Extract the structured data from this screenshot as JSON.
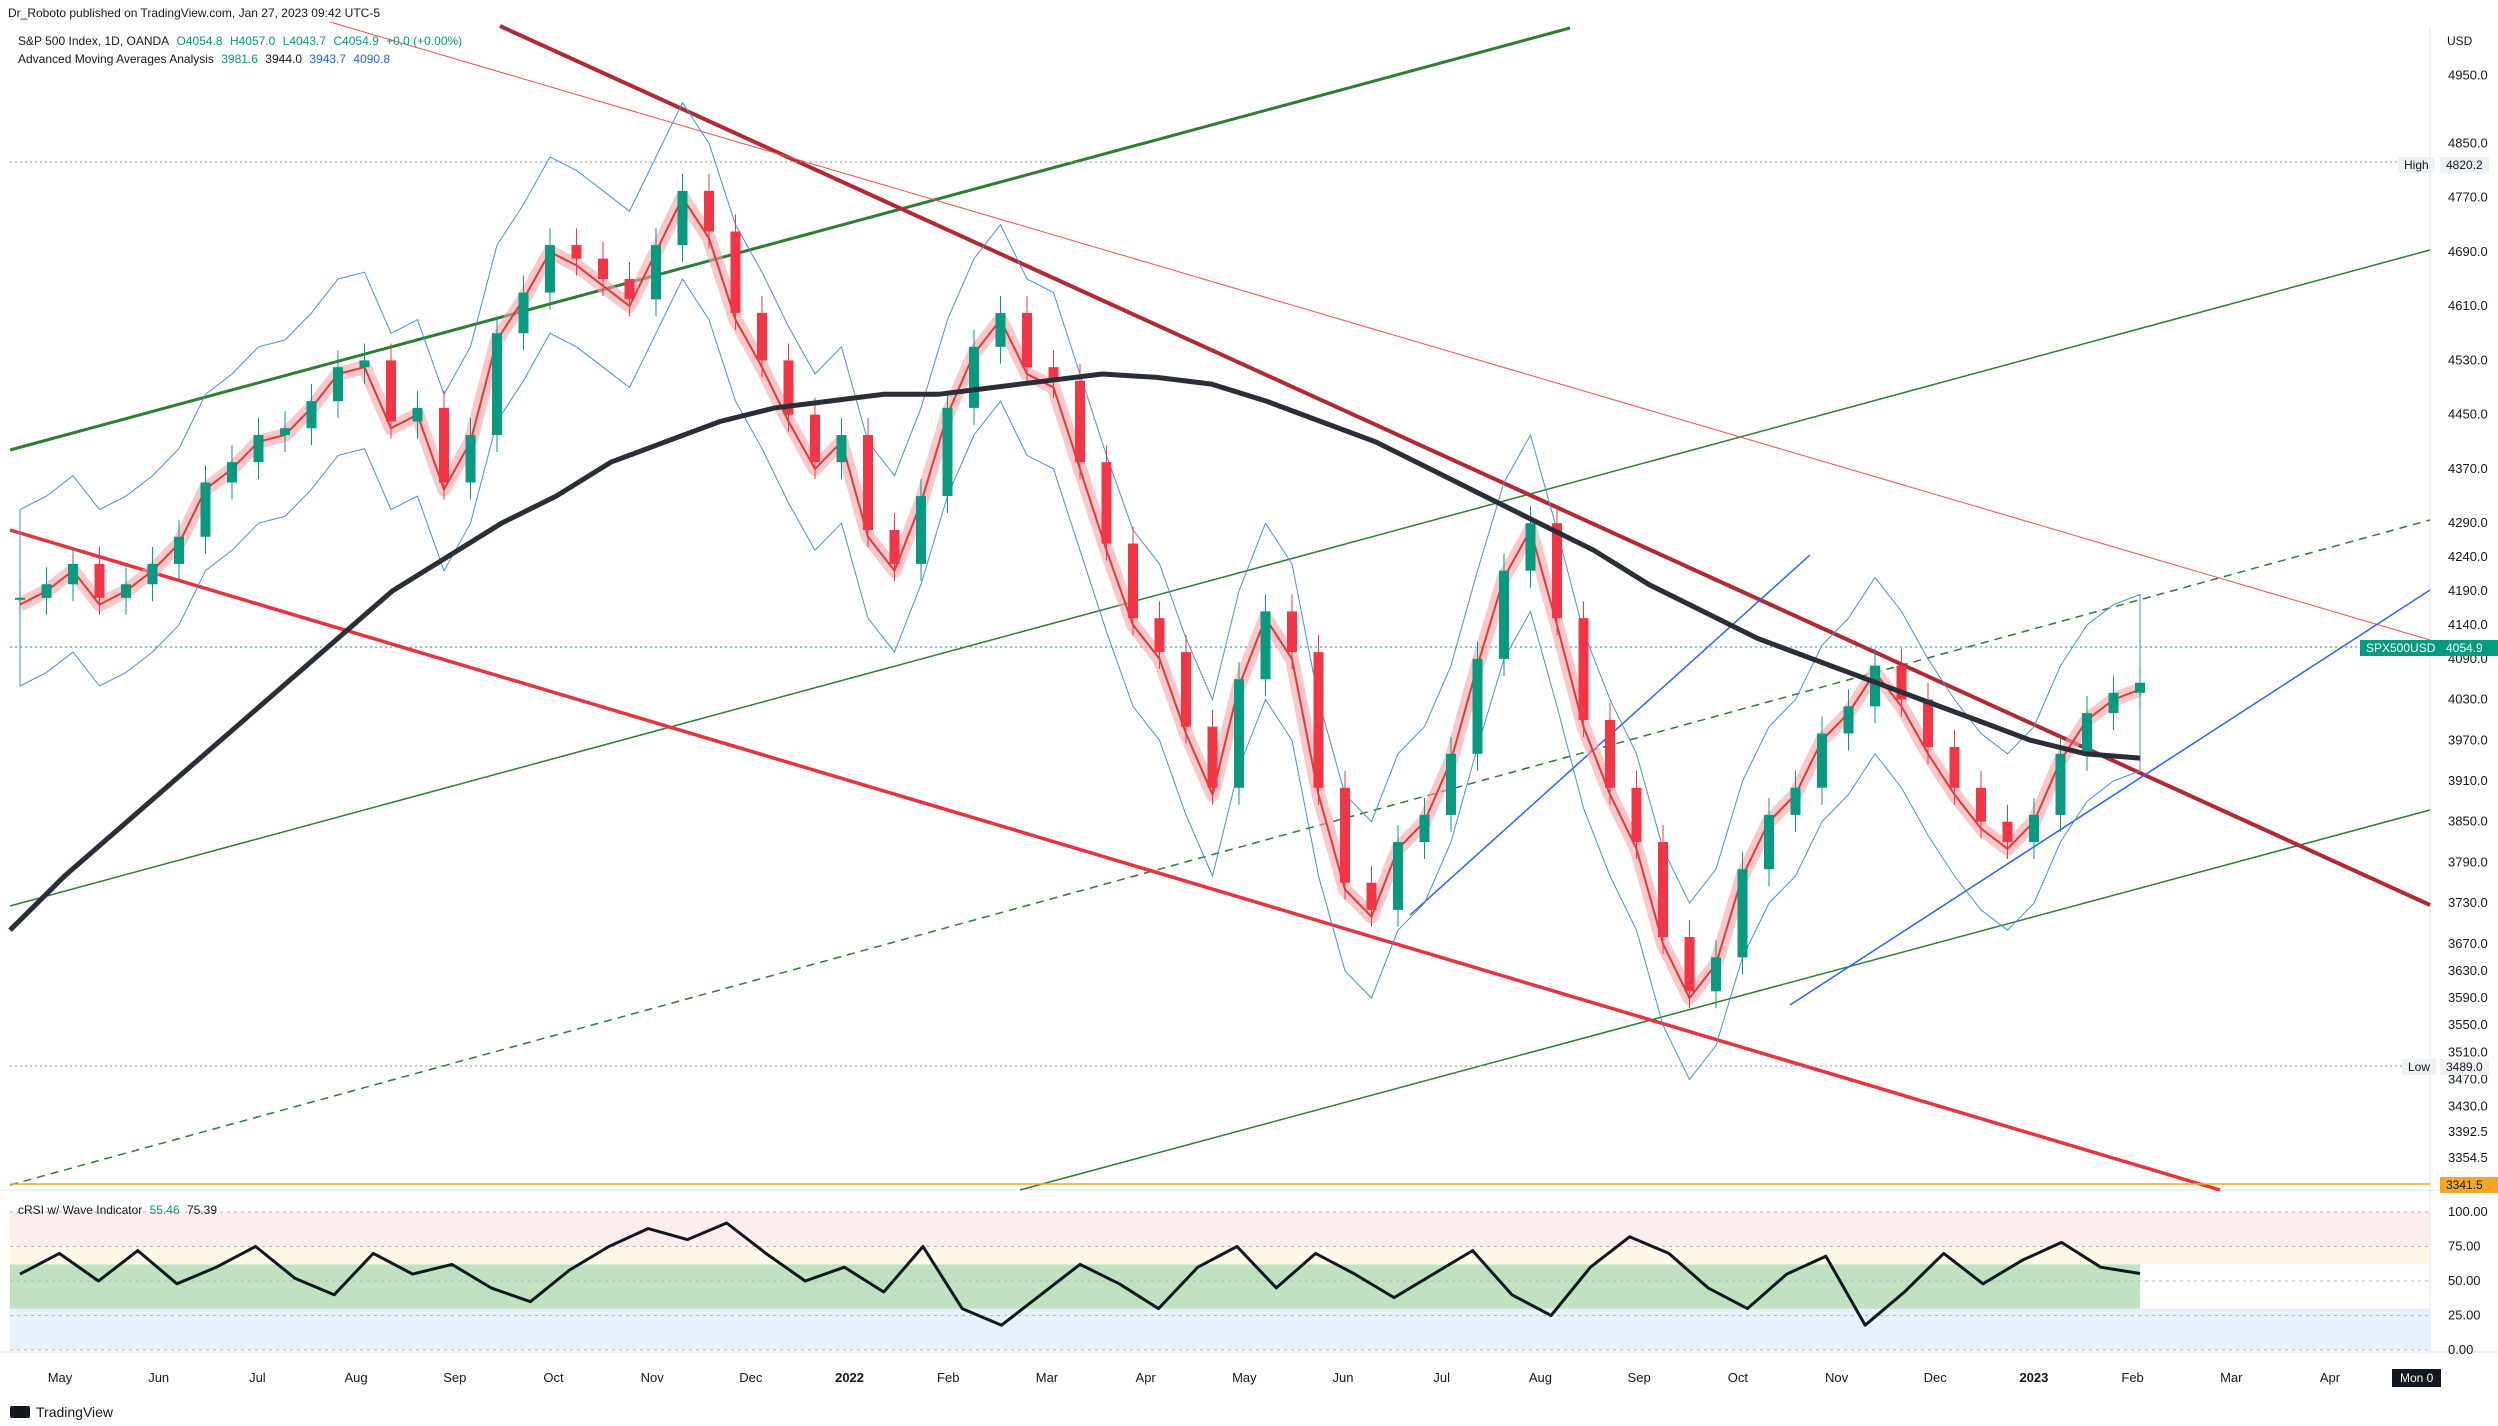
{
  "header": {
    "published": "Dr_Roboto published on TradingView.com, Jan 27, 2023 09:42 UTC-5",
    "symbol_line": "S&P 500 Index, 1D, OANDA",
    "ohlc": {
      "o": "O4054.8",
      "h": "H4057.0",
      "l": "L4043.7",
      "c": "C4054.9",
      "chg": "+0.0 (+0.00%)"
    },
    "ma_indicator": {
      "name": "Advanced Moving Averages Analysis",
      "v1": "3981.6",
      "v2": "3944.0",
      "v3": "3943.7",
      "v4": "4090.8"
    },
    "rsi_indicator": {
      "name": "cRSI w/ Wave Indicator",
      "v1": "55.46",
      "v2": "75.39"
    },
    "currency": "USD"
  },
  "tags": {
    "high_label": "High",
    "high_value": "4820.2",
    "low_label": "Low",
    "low_value": "3489.0",
    "symbol_tag": "SPX500USD",
    "symbol_value": "4054.9",
    "support_value": "3341.5"
  },
  "footer": {
    "brand": "TradingView",
    "date_badge": "Mon 0"
  },
  "colors": {
    "bull": "#089981",
    "bear": "#f23645",
    "ma_black": "#2a2e39",
    "trend_red": "#b22833",
    "trend_green": "#2e7d32",
    "blue": "#2962ff"
  },
  "chart_data": {
    "type": "line",
    "title": "S&P 500 Index, 1D, OANDA",
    "ylabel": "USD",
    "ylim": [
      3310,
      5020
    ],
    "y_ticks": [
      "4950.0",
      "4850.0",
      "4770.0",
      "4690.0",
      "4610.0",
      "4530.0",
      "4450.0",
      "4370.0",
      "4290.0",
      "4240.0",
      "4190.0",
      "4140.0",
      "4090.0",
      "4030.0",
      "3970.0",
      "3910.0",
      "3850.0",
      "3790.0",
      "3730.0",
      "3670.0",
      "3630.0",
      "3590.0",
      "3550.0",
      "3510.0",
      "3470.0",
      "3430.0",
      "3392.5",
      "3354.5"
    ],
    "x_ticks": [
      "May",
      "Jun",
      "Jul",
      "Aug",
      "Sep",
      "Oct",
      "Nov",
      "Dec",
      "2022",
      "Feb",
      "Mar",
      "Apr",
      "May",
      "Jun",
      "Jul",
      "Aug",
      "Sep",
      "Oct",
      "Nov",
      "Dec",
      "2023",
      "Feb",
      "Mar",
      "Apr"
    ],
    "series": [
      {
        "values": [
          4180,
          4200,
          4230,
          4180,
          4200,
          4230,
          4270,
          4350,
          4380,
          4420,
          4430,
          4470,
          4520,
          4530,
          4440,
          4460,
          4350,
          4420,
          4570,
          4630,
          4700,
          4680,
          4650,
          4620,
          4700,
          4780,
          4720,
          4600,
          4530,
          4450,
          4380,
          4420,
          4280,
          4230,
          4330,
          4460,
          4550,
          4600,
          4520,
          4500,
          4380,
          4260,
          4150,
          4100,
          3990,
          3900,
          4060,
          4160,
          4100,
          3900,
          3760,
          3720,
          3820,
          3860,
          3950,
          4090,
          4220,
          4290,
          4150,
          4000,
          3900,
          3820,
          3680,
          3600,
          3650,
          3780,
          3860,
          3900,
          3980,
          4020,
          4080,
          4030,
          3960,
          3900,
          3850,
          3820,
          3860,
          3950,
          4010,
          4040,
          4054.9
        ]
      },
      {
        "values": [
          3690,
          3770,
          3840,
          3910,
          3980,
          4050,
          4120,
          4190,
          4240,
          4290,
          4330,
          4380,
          4410,
          4440,
          4460,
          4470,
          4480,
          4480,
          4490,
          4500,
          4510,
          4505,
          4495,
          4470,
          4440,
          4410,
          4370,
          4330,
          4290,
          4250,
          4200,
          4160,
          4120,
          4090,
          4060,
          4030,
          4000,
          3970,
          3950,
          3943.7
        ]
      }
    ],
    "annotations": [
      "High 4820.2",
      "Low 3489.0",
      "SPX500USD 4054.9",
      "3341.5"
    ],
    "rsi_panel": {
      "ylim": [
        0,
        100
      ],
      "y_ticks": [
        "100.00",
        "75.00",
        "50.00",
        "25.00",
        "0.00"
      ],
      "values": [
        55,
        70,
        50,
        72,
        48,
        60,
        75,
        52,
        40,
        70,
        55,
        62,
        45,
        35,
        58,
        75,
        88,
        80,
        92,
        70,
        50,
        60,
        42,
        75,
        30,
        18,
        40,
        62,
        48,
        30,
        60,
        75,
        45,
        70,
        55,
        38,
        55,
        72,
        40,
        25,
        60,
        82,
        70,
        45,
        30,
        55,
        68,
        18,
        42,
        70,
        48,
        65,
        78,
        60,
        55.46
      ]
    }
  }
}
